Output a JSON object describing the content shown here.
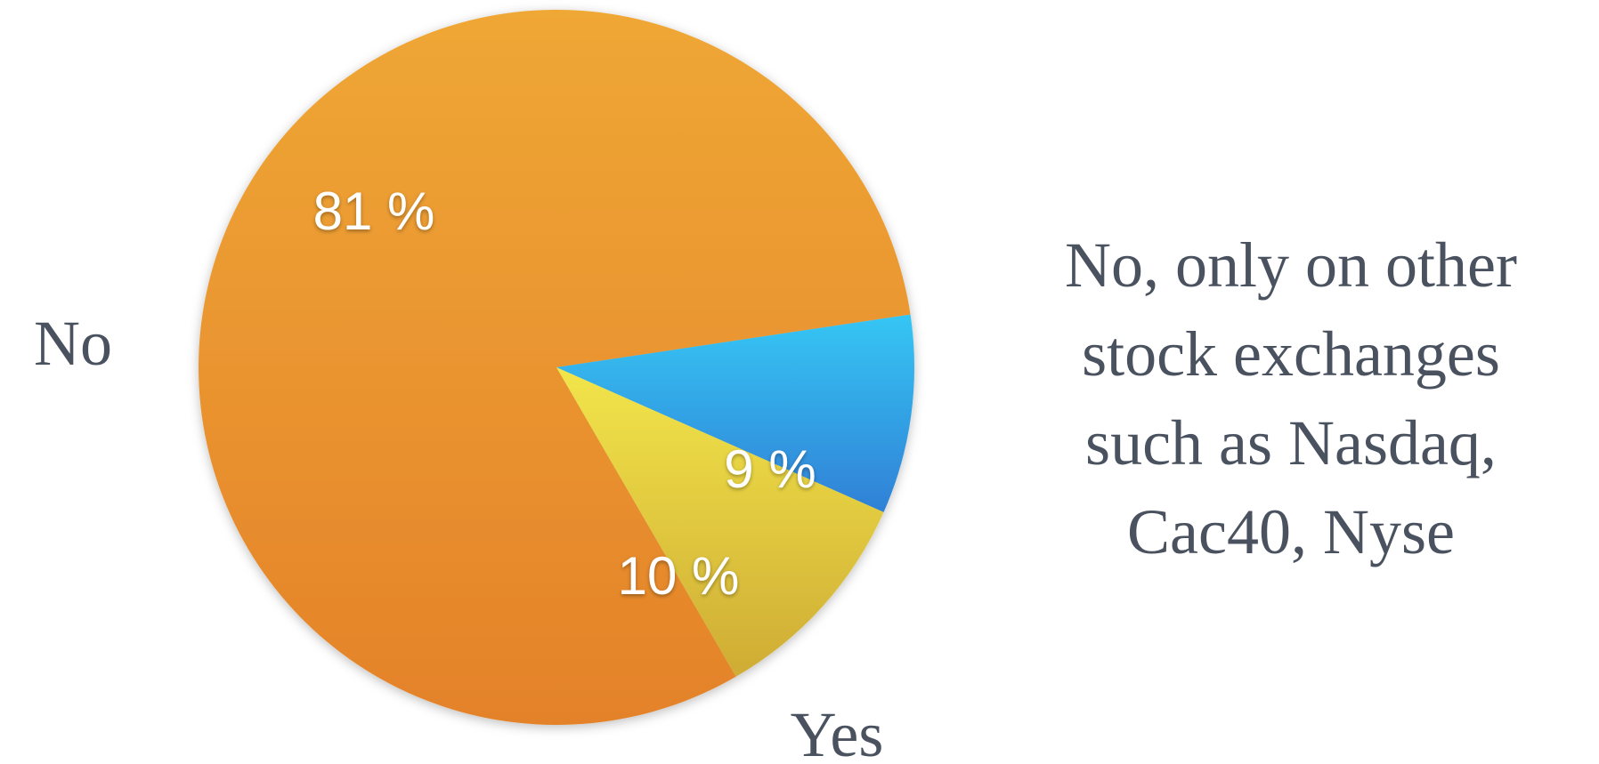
{
  "chart_data": {
    "type": "pie",
    "categories": [
      "No",
      "No, only on other stock exchanges such as Nasdaq, Cac40, Nyse",
      "Yes"
    ],
    "values": [
      81,
      9,
      10
    ],
    "value_labels": [
      "81 %",
      "9 %",
      "10 %"
    ],
    "label_lines": {
      "no": [
        "No"
      ],
      "other": [
        "No, only on other",
        "stock exchanges",
        "such as Nasdaq,",
        "Cac40, Nyse"
      ],
      "yes": [
        "Yes"
      ]
    },
    "colors": {
      "no": [
        "#efa735",
        "#e4822a"
      ],
      "other": [
        "#36c6f4",
        "#2f80d6"
      ],
      "yes": [
        "#f2e54a",
        "#cfac34"
      ]
    },
    "legend": "none",
    "title": ""
  }
}
